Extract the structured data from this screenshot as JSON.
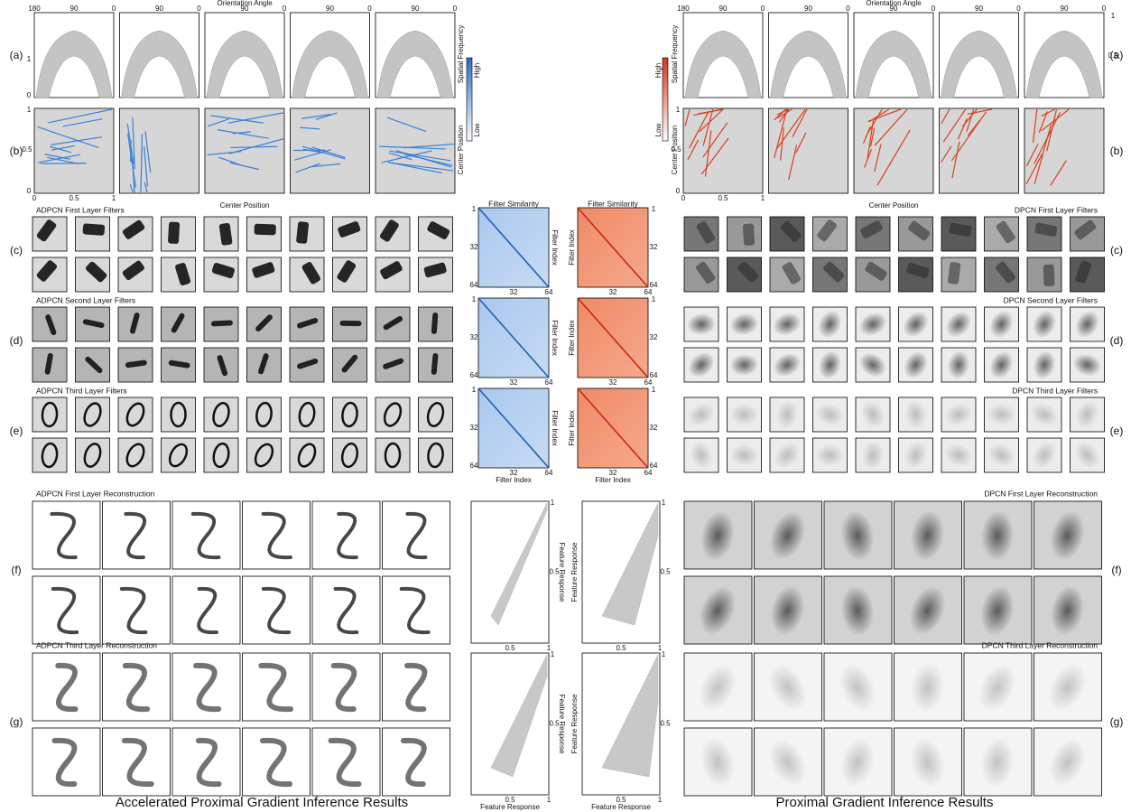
{
  "left": {
    "row_labels": [
      "(a)",
      "(b)",
      "(c)",
      "(d)",
      "(e)",
      "(f)",
      "(g)"
    ],
    "orientation_axis": {
      "label": "Orientation Angle",
      "ticks": [
        "180",
        "90",
        "0"
      ]
    },
    "frequency_axis": {
      "label": "Spatial Frequency",
      "ticks": [
        "0",
        "1"
      ]
    },
    "colorbar": {
      "high": "High",
      "low": "Low"
    },
    "position_axis": {
      "label": "Center Position",
      "ticks": [
        "0",
        "0.5",
        "1"
      ]
    },
    "filter_titles": [
      "ADPCN First Layer Filters",
      "ADPCN Second Layer Filters",
      "ADPCN Third Layer Filters"
    ],
    "similarity": {
      "title": "Filter Similarity",
      "axis_label": "Filter Index",
      "ticks": [
        "1",
        "32",
        "64"
      ]
    },
    "reconstruction_titles": [
      "ADPCN First Layer Reconstruction",
      "ADPCN Third Layer Reconstruction"
    ],
    "response_axis": {
      "label": "Feature Response",
      "ticks": [
        "0.5",
        "1"
      ]
    },
    "caption": "Accelerated Proximal Gradient Inference Results"
  },
  "right": {
    "row_labels": [
      "(a)",
      "(b)",
      "(c)",
      "(d)",
      "(e)",
      "(f)",
      "(g)"
    ],
    "orientation_axis": {
      "label": "Orientation Angle",
      "ticks": [
        "180",
        "90",
        "0"
      ]
    },
    "frequency_axis": {
      "label": "Spatial Frequency",
      "ticks": [
        "0.5",
        "1"
      ]
    },
    "colorbar": {
      "high": "High",
      "low": "Low"
    },
    "position_axis": {
      "label": "Center Position",
      "ticks": [
        "0",
        "0.5",
        "1"
      ]
    },
    "filter_titles": [
      "DPCN First Layer Filters",
      "DPCN Second Layer Filters",
      "DPCN Third Layer Filters"
    ],
    "similarity": {
      "title": "Filter Similarity",
      "axis_label": "Filter Index",
      "ticks": [
        "1",
        "32",
        "64"
      ]
    },
    "reconstruction_titles": [
      "DPCN First Layer Reconstruction",
      "DPCN Third Layer Reconstruction"
    ],
    "response_axis": {
      "label": "Feature Response",
      "ticks": [
        "0.5",
        "1"
      ]
    },
    "caption": "Proximal Gradient Inference Results"
  }
}
